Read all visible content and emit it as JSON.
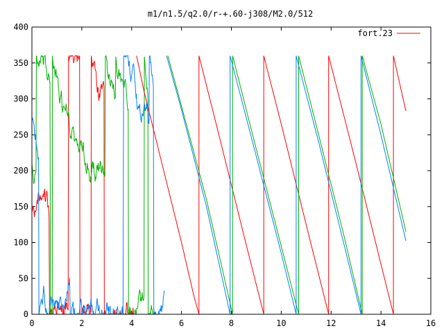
{
  "chart_data": {
    "type": "line",
    "title": "m1/n1.5/q2.0/r-+.60-j308/M2.0/512",
    "xlabel": "",
    "ylabel": "",
    "xlim": [
      0,
      16
    ],
    "ylim": [
      0,
      400
    ],
    "x_ticks": [
      0,
      2,
      4,
      6,
      8,
      10,
      12,
      14,
      16
    ],
    "y_ticks": [
      0,
      50,
      100,
      150,
      200,
      250,
      300,
      350,
      400
    ],
    "grid": false,
    "legend": {
      "position": "top-right",
      "entries": [
        "fort.23"
      ]
    },
    "series": [
      {
        "name": "fort.23",
        "color": "#ff0000",
        "values_x": [
          4.2,
          4.5,
          5.0,
          5.5,
          6.0,
          6.5,
          6.7,
          6.7,
          7.5,
          8.5,
          9.3,
          9.3,
          10.0,
          11.0,
          11.9,
          11.9,
          13.0,
          14.0,
          14.5,
          14.5,
          15.0
        ],
        "values_y": [
          360,
          310,
          240,
          170,
          100,
          25,
          0,
          360,
          250,
          110,
          0,
          360,
          265,
          125,
          0,
          360,
          210,
          70,
          0,
          360,
          283
        ]
      },
      {
        "color": "#00b000",
        "values_x": [
          5.45,
          6.0,
          7.0,
          8.05,
          8.05,
          9.0,
          10.0,
          10.7,
          10.7,
          11.5,
          12.5,
          13.25,
          13.25,
          14.0,
          15.0
        ],
        "values_y": [
          360,
          290,
          160,
          0,
          360,
          230,
          95,
          0,
          360,
          250,
          112,
          0,
          360,
          265,
          115
        ]
      },
      {
        "color": "#0080ff",
        "values_x": [
          5.4,
          6.0,
          7.0,
          7.95,
          7.95,
          9.0,
          10.0,
          10.6,
          10.6,
          11.5,
          12.5,
          13.2,
          13.2,
          14.0,
          15.0
        ],
        "values_y": [
          360,
          285,
          150,
          0,
          360,
          220,
          85,
          0,
          360,
          240,
          100,
          0,
          360,
          250,
          102
        ]
      }
    ]
  }
}
